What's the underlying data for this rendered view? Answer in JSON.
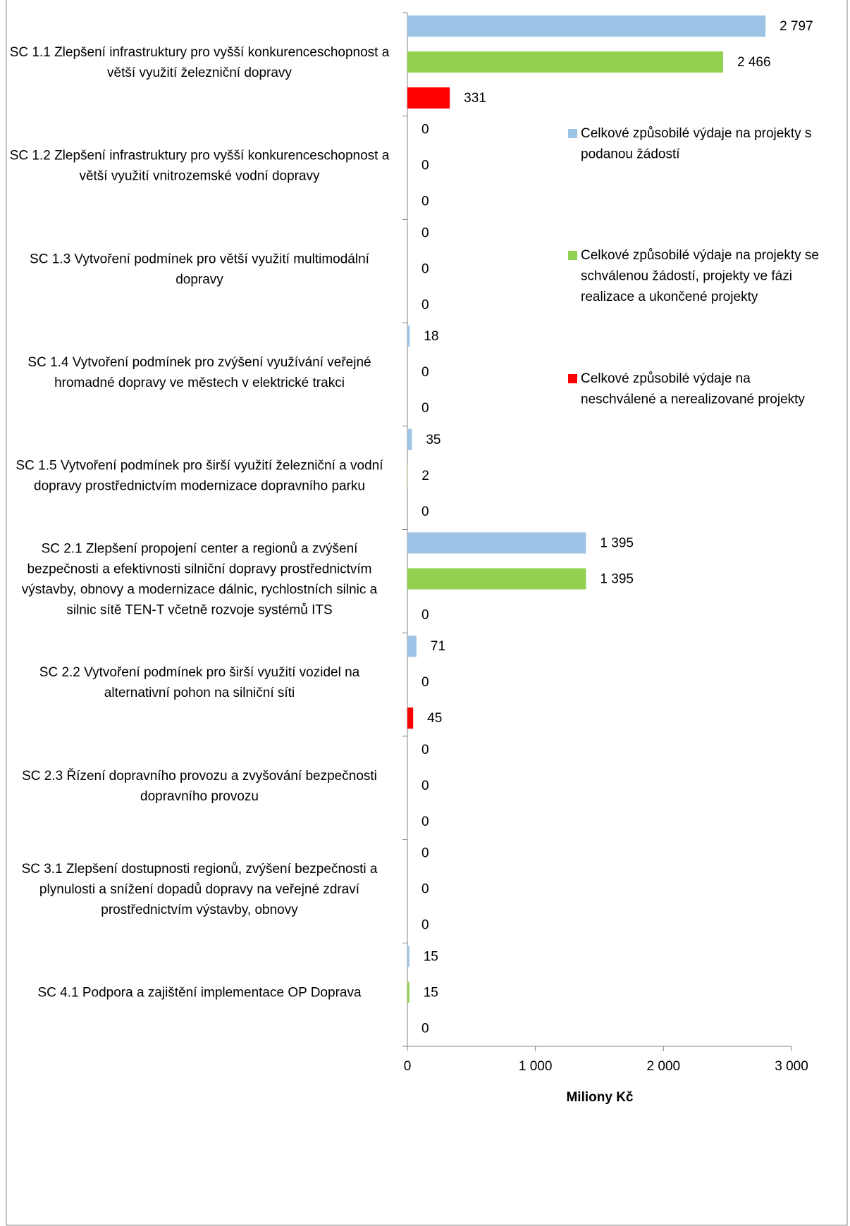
{
  "chart_data": {
    "type": "hbar",
    "x_label": "Miliony Kč",
    "categories": [
      "SC 1.1 Zlepšení infrastruktury pro vyšší konkurenceschopnost a větší využití železniční dopravy",
      "SC 1.2 Zlepšení infrastruktury pro vyšší konkurenceschopnost a větší využití vnitrozemské vodní dopravy",
      "SC 1.3 Vytvoření podmínek pro větší využití multimodální dopravy",
      "SC 1.4 Vytvoření podmínek pro zvýšení využívání veřejné hromadné dopravy ve městech v elektrické trakci",
      "SC 1.5 Vytvoření podmínek pro širší využití železniční a vodní dopravy prostřednictvím modernizace dopravního parku",
      "SC 2.1 Zlepšení propojení center a regionů a zvýšení bezpečnosti a efektivnosti silniční dopravy prostřednictvím výstavby, obnovy a modernizace dálnic, rychlostních silnic a silnic sítě TEN-T včetně rozvoje systémů ITS",
      "SC 2.2 Vytvoření podmínek pro širší využití vozidel na alternativní pohon na silniční síti",
      "SC 2.3 Řízení dopravního provozu a zvyšování bezpečnosti dopravního provozu",
      "SC 3.1 Zlepšení dostupnosti regionů, zvýšení bezpečnosti a plynulosti a snížení dopadů dopravy na veřejné zdraví prostřednictvím výstavby, obnovy",
      "SC 4.1 Podpora a zajištění implementace OP Doprava"
    ],
    "series": [
      {
        "name": "Celkové způsobilé výdaje na projekty s podanou žádostí",
        "color": "#9dc3e6",
        "values": [
          2797,
          0,
          0,
          18,
          35,
          1395,
          71,
          0,
          0,
          15
        ],
        "value_labels": [
          "2 797",
          "0",
          "0",
          "18",
          "35",
          "1 395",
          "71",
          "0",
          "0",
          "15"
        ]
      },
      {
        "name": "Celkové způsobilé výdaje na projekty se schválenou žádostí, projekty ve fázi realizace a ukončené projekty",
        "color": "#92d050",
        "values": [
          2466,
          0,
          0,
          0,
          2,
          1395,
          0,
          0,
          0,
          15
        ],
        "value_labels": [
          "2 466",
          "0",
          "0",
          "0",
          "2",
          "1 395",
          "0",
          "0",
          "0",
          "15"
        ]
      },
      {
        "name": "Celkové způsobilé výdaje na neschválené a nerealizované projekty",
        "color": "#ff0000",
        "values": [
          331,
          0,
          0,
          0,
          0,
          0,
          45,
          0,
          0,
          0
        ],
        "value_labels": [
          "331",
          "0",
          "0",
          "0",
          "0",
          "0",
          "45",
          "0",
          "0",
          "0"
        ]
      }
    ],
    "xlim": [
      0,
      3000
    ],
    "xticks": [
      0,
      {
        "value": 1000,
        "label": "1 000"
      },
      {
        "value": 2000,
        "label": "2 000"
      },
      {
        "value": 3000,
        "label": "3 000"
      }
    ],
    "legend": "right"
  }
}
